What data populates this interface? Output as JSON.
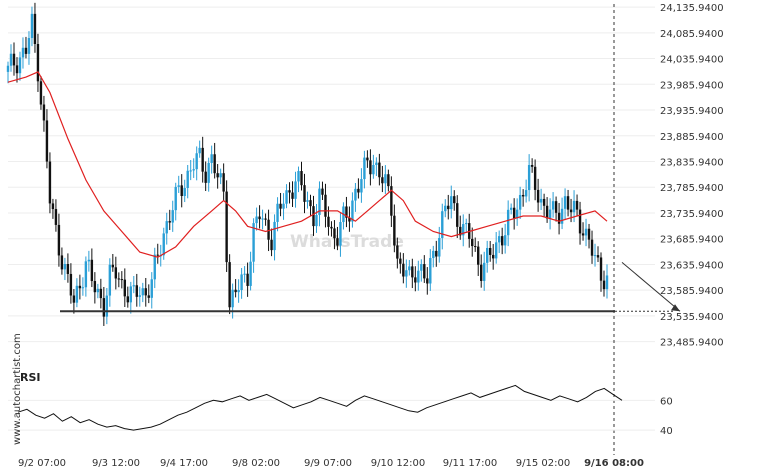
{
  "watermark": "WhatsTrade",
  "side_credit": "www.autochartist.com",
  "rsi_label": "RSI",
  "colors": {
    "bull": "#2a9fd6",
    "bear": "#111111",
    "ma": "#e02020",
    "support": "#333333",
    "projection": "#333333",
    "rsi": "#111111",
    "grid": "#eeeeee",
    "vline": "#333333"
  },
  "chart_data": [
    {
      "type": "candlestick",
      "ylim": [
        23460,
        24140
      ],
      "y_ticks": [
        "24,135.9400",
        "24,085.9400",
        "24,035.9400",
        "23,985.9400",
        "23,935.9400",
        "23,885.9400",
        "23,835.9400",
        "23,785.9400",
        "23,735.9400",
        "23,685.9400",
        "23,635.9400",
        "23,585.9400",
        "23,535.9400",
        "23,485.9400"
      ],
      "y_tick_values": [
        24135.94,
        24085.94,
        24035.94,
        23985.94,
        23935.94,
        23885.94,
        23835.94,
        23785.94,
        23735.94,
        23685.94,
        23635.94,
        23585.94,
        23535.94,
        23485.94
      ],
      "x_ticks": [
        "9/2 07:00",
        "9/3 12:00",
        "9/4 17:00",
        "9/8 02:00",
        "9/9 07:00",
        "9/10 12:00",
        "9/11 17:00",
        "9/15 02:00",
        "9/16 08:00"
      ],
      "x_tick_bold_index": 8,
      "support_level": 23545,
      "projection": {
        "from": 23640,
        "to": 23545
      },
      "close_path": [
        [
          0,
          24010
        ],
        [
          2,
          24030
        ],
        [
          4,
          24040
        ],
        [
          6,
          24050
        ],
        [
          8,
          24100
        ],
        [
          10,
          24020
        ],
        [
          12,
          23900
        ],
        [
          14,
          23760
        ],
        [
          16,
          23700
        ],
        [
          18,
          23650
        ],
        [
          20,
          23600
        ],
        [
          22,
          23560
        ],
        [
          24,
          23600
        ],
        [
          26,
          23640
        ],
        [
          28,
          23600
        ],
        [
          30,
          23580
        ],
        [
          32,
          23560
        ],
        [
          34,
          23610
        ],
        [
          36,
          23620
        ],
        [
          38,
          23600
        ],
        [
          40,
          23580
        ],
        [
          42,
          23570
        ],
        [
          44,
          23590
        ],
        [
          46,
          23580
        ],
        [
          48,
          23600
        ],
        [
          50,
          23650
        ],
        [
          52,
          23700
        ],
        [
          54,
          23730
        ],
        [
          56,
          23760
        ],
        [
          58,
          23790
        ],
        [
          60,
          23810
        ],
        [
          62,
          23830
        ],
        [
          64,
          23840
        ],
        [
          66,
          23820
        ],
        [
          68,
          23840
        ],
        [
          70,
          23800
        ],
        [
          72,
          23780
        ],
        [
          74,
          23560
        ],
        [
          76,
          23580
        ],
        [
          78,
          23600
        ],
        [
          80,
          23620
        ],
        [
          82,
          23700
        ],
        [
          84,
          23730
        ],
        [
          86,
          23710
        ],
        [
          88,
          23690
        ],
        [
          90,
          23730
        ],
        [
          92,
          23760
        ],
        [
          94,
          23780
        ],
        [
          96,
          23800
        ],
        [
          98,
          23780
        ],
        [
          100,
          23760
        ],
        [
          102,
          23730
        ],
        [
          104,
          23760
        ],
        [
          106,
          23740
        ],
        [
          108,
          23700
        ],
        [
          110,
          23690
        ],
        [
          112,
          23720
        ],
        [
          114,
          23740
        ],
        [
          116,
          23780
        ],
        [
          118,
          23800
        ],
        [
          120,
          23830
        ],
        [
          122,
          23840
        ],
        [
          124,
          23810
        ],
        [
          126,
          23790
        ],
        [
          128,
          23750
        ],
        [
          130,
          23640
        ],
        [
          132,
          23620
        ],
        [
          134,
          23610
        ],
        [
          136,
          23630
        ],
        [
          138,
          23620
        ],
        [
          140,
          23600
        ],
        [
          142,
          23660
        ],
        [
          144,
          23700
        ],
        [
          146,
          23740
        ],
        [
          148,
          23760
        ],
        [
          150,
          23730
        ],
        [
          152,
          23700
        ],
        [
          154,
          23690
        ],
        [
          156,
          23660
        ],
        [
          158,
          23630
        ],
        [
          160,
          23640
        ],
        [
          162,
          23660
        ],
        [
          164,
          23690
        ],
        [
          166,
          23700
        ],
        [
          168,
          23730
        ],
        [
          170,
          23750
        ],
        [
          172,
          23780
        ],
        [
          174,
          23810
        ],
        [
          176,
          23790
        ],
        [
          178,
          23760
        ],
        [
          180,
          23740
        ],
        [
          182,
          23730
        ],
        [
          184,
          23740
        ],
        [
          186,
          23760
        ],
        [
          188,
          23740
        ],
        [
          190,
          23730
        ],
        [
          192,
          23710
        ],
        [
          194,
          23680
        ],
        [
          196,
          23640
        ],
        [
          198,
          23620
        ],
        [
          200,
          23610
        ]
      ],
      "ma_path": [
        [
          0,
          23990
        ],
        [
          6,
          24000
        ],
        [
          10,
          24010
        ],
        [
          14,
          23970
        ],
        [
          20,
          23880
        ],
        [
          26,
          23800
        ],
        [
          32,
          23740
        ],
        [
          38,
          23700
        ],
        [
          44,
          23660
        ],
        [
          50,
          23650
        ],
        [
          56,
          23670
        ],
        [
          62,
          23710
        ],
        [
          68,
          23740
        ],
        [
          72,
          23760
        ],
        [
          76,
          23740
        ],
        [
          80,
          23710
        ],
        [
          86,
          23700
        ],
        [
          92,
          23710
        ],
        [
          98,
          23720
        ],
        [
          104,
          23740
        ],
        [
          110,
          23740
        ],
        [
          116,
          23720
        ],
        [
          120,
          23740
        ],
        [
          124,
          23760
        ],
        [
          128,
          23780
        ],
        [
          132,
          23760
        ],
        [
          136,
          23720
        ],
        [
          142,
          23700
        ],
        [
          148,
          23690
        ],
        [
          154,
          23700
        ],
        [
          160,
          23710
        ],
        [
          166,
          23720
        ],
        [
          172,
          23730
        ],
        [
          178,
          23730
        ],
        [
          184,
          23720
        ],
        [
          190,
          23730
        ],
        [
          196,
          23740
        ],
        [
          200,
          23720
        ]
      ]
    },
    {
      "type": "line",
      "name": "RSI",
      "ylim": [
        30,
        75
      ],
      "y_ticks": [
        "60",
        "40"
      ],
      "y_tick_values": [
        60,
        40
      ],
      "values": [
        52,
        54,
        50,
        48,
        51,
        46,
        49,
        45,
        47,
        44,
        42,
        43,
        41,
        40,
        41,
        42,
        44,
        47,
        50,
        52,
        55,
        58,
        60,
        59,
        61,
        63,
        60,
        62,
        64,
        61,
        58,
        55,
        57,
        59,
        62,
        60,
        58,
        56,
        60,
        63,
        61,
        59,
        57,
        55,
        53,
        52,
        55,
        57,
        59,
        61,
        63,
        65,
        62,
        64,
        66,
        68,
        70,
        66,
        64,
        62,
        60,
        63,
        61,
        59,
        62,
        66,
        68,
        64,
        60
      ]
    }
  ]
}
